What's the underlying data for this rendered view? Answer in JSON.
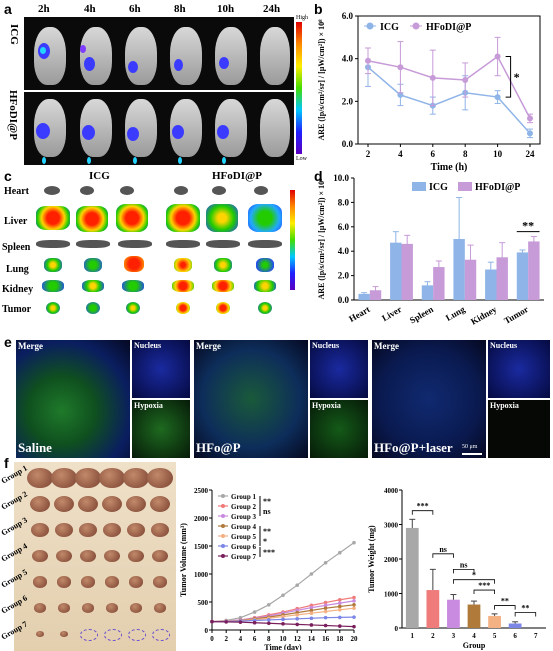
{
  "panel_labels": {
    "a": "a",
    "b": "b",
    "c": "c",
    "d": "d",
    "e": "e",
    "f": "f"
  },
  "panel_a": {
    "times": [
      "2h",
      "4h",
      "6h",
      "8h",
      "10h",
      "24h"
    ],
    "rows": [
      "ICG",
      "HFoDI@P"
    ],
    "scale_high": "High",
    "scale_low": "Low"
  },
  "panel_c": {
    "groups": [
      "ICG",
      "HFoDI@P"
    ],
    "organs": [
      "Heart",
      "Liver",
      "Spleen",
      "Lung",
      "Kidney",
      "Tumor"
    ]
  },
  "panel_e": {
    "columns": [
      {
        "merge": "Merge",
        "nucleus": "Nucleus",
        "hypoxia": "Hypoxia",
        "name": "Saline"
      },
      {
        "merge": "Merge",
        "nucleus": "Nucleus",
        "hypoxia": "Hypoxia",
        "name": "HFo@P"
      },
      {
        "merge": "Merge",
        "nucleus": "Nucleus",
        "hypoxia": "Hypoxia",
        "name": "HFo@P+laser"
      }
    ],
    "scale_bar": "50 μm"
  },
  "panel_f": {
    "group_labels": [
      "Group 1",
      "Group 2",
      "Group 3",
      "Group 4",
      "Group 5",
      "Group 6",
      "Group 7"
    ]
  },
  "colors": {
    "icg": "#8fb4e8",
    "hfodi": "#c79ad8",
    "g1": "#a8a8a8",
    "g2": "#ef7b7b",
    "g3": "#c98be0",
    "g4": "#b07a3a",
    "g5": "#f4b183",
    "g6": "#7b86e6",
    "g7": "#7b1f5c"
  },
  "chart_data": [
    {
      "type": "line",
      "ylabel": "ARE ([p/s/cm²/sr] / [μW/cm²]) × 10⁸",
      "xlabel": "Time (h)",
      "categories": [
        "2",
        "4",
        "6",
        "8",
        "10",
        "24"
      ],
      "ylim": [
        0,
        6
      ],
      "yticks": [
        "0.0",
        "2.0",
        "4.0",
        "6.0"
      ],
      "series": [
        {
          "name": "ICG",
          "values": [
            3.6,
            2.3,
            1.8,
            2.4,
            2.2,
            0.5
          ],
          "errors": [
            0.9,
            0.5,
            0.4,
            0.8,
            0.3,
            0.2
          ]
        },
        {
          "name": "HFoDI@P",
          "values": [
            3.9,
            3.6,
            3.1,
            3.0,
            4.1,
            1.2
          ],
          "errors": [
            0.6,
            1.2,
            1.3,
            0.8,
            0.9,
            0.2
          ]
        }
      ],
      "annotation": "*"
    },
    {
      "type": "bar",
      "ylabel": "ARE ([p/s/cm²/sr] / [μW/cm²]) × 10⁸",
      "categories": [
        "Heart",
        "Liver",
        "Spleen",
        "Lung",
        "Kidney",
        "Tumor"
      ],
      "ylim": [
        0,
        10
      ],
      "yticks": [
        "0.0",
        "2.0",
        "4.0",
        "6.0",
        "8.0",
        "10.0"
      ],
      "series": [
        {
          "name": "ICG",
          "values": [
            0.5,
            4.7,
            1.2,
            5.0,
            2.5,
            3.9
          ],
          "errors": [
            0.1,
            0.9,
            0.3,
            3.4,
            0.6,
            0.2
          ]
        },
        {
          "name": "HFoDI@P",
          "values": [
            0.8,
            4.6,
            2.7,
            3.3,
            3.5,
            4.8
          ],
          "errors": [
            0.3,
            0.7,
            0.5,
            1.2,
            1.2,
            0.4
          ]
        }
      ],
      "annotation": "**"
    },
    {
      "type": "line",
      "ylabel": "Tumor Volume (mm³)",
      "xlabel": "Time (day)",
      "x": [
        0,
        2,
        4,
        6,
        8,
        10,
        12,
        14,
        16,
        18,
        20
      ],
      "ylim": [
        0,
        2500
      ],
      "yticks": [
        "0",
        "500",
        "1000",
        "1500",
        "2000",
        "2500"
      ],
      "xticks": [
        "0",
        "2",
        "4",
        "6",
        "8",
        "10",
        "12",
        "14",
        "16",
        "18",
        "20"
      ],
      "series": [
        {
          "name": "Group 1",
          "values": [
            150,
            170,
            220,
            320,
            450,
            620,
            800,
            1000,
            1200,
            1380,
            1560
          ]
        },
        {
          "name": "Group 2",
          "values": [
            150,
            160,
            180,
            220,
            270,
            320,
            380,
            440,
            490,
            540,
            580
          ]
        },
        {
          "name": "Group 3",
          "values": [
            150,
            160,
            180,
            210,
            250,
            300,
            350,
            400,
            440,
            480,
            520
          ]
        },
        {
          "name": "Group 4",
          "values": [
            150,
            155,
            170,
            200,
            230,
            270,
            310,
            350,
            390,
            420,
            450
          ]
        },
        {
          "name": "Group 5",
          "values": [
            150,
            155,
            165,
            185,
            210,
            240,
            270,
            300,
            330,
            360,
            390
          ]
        },
        {
          "name": "Group 6",
          "values": [
            150,
            150,
            160,
            170,
            180,
            190,
            200,
            210,
            220,
            225,
            230
          ]
        },
        {
          "name": "Group 7",
          "values": [
            150,
            145,
            140,
            130,
            120,
            110,
            100,
            90,
            80,
            70,
            60
          ]
        }
      ],
      "legend_annotations": [
        "**",
        "ns",
        "**",
        "*",
        "***"
      ]
    },
    {
      "type": "bar",
      "ylabel": "Tumor Weight (mg)",
      "xlabel": "Group",
      "categories": [
        "1",
        "2",
        "3",
        "4",
        "5",
        "6",
        "7"
      ],
      "ylim": [
        0,
        4000
      ],
      "yticks": [
        "0",
        "1000",
        "2000",
        "3000",
        "4000"
      ],
      "values": [
        2900,
        1100,
        820,
        680,
        350,
        130,
        0
      ],
      "errors": [
        250,
        600,
        150,
        100,
        60,
        50,
        0
      ],
      "annotations": [
        "***",
        "ns",
        "ns",
        "*",
        "***",
        "**",
        "**"
      ]
    }
  ]
}
